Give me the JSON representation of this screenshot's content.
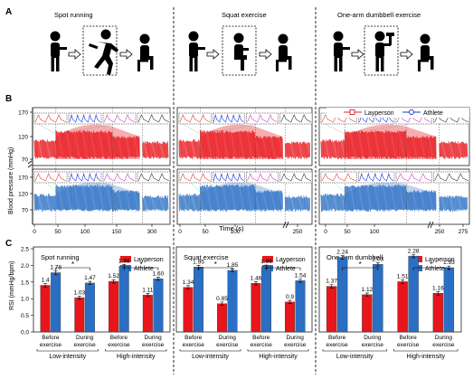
{
  "panel_letters": [
    "A",
    "B",
    "C"
  ],
  "panel_a": {
    "scenarios": [
      "Spot running",
      "Squat exercise",
      "One-arm dumbbell exercise"
    ]
  },
  "panel_b": {
    "ylabel": "Blood pressure (mmHg)",
    "xlabel": "Time (s)",
    "legend": [
      "Layperson",
      "Athlete"
    ],
    "yticks": [
      "170",
      "120",
      "70"
    ],
    "xticks": [
      [
        "0",
        "50",
        "100",
        "150",
        "300"
      ],
      [
        "0",
        "50",
        "100",
        "250"
      ],
      [
        "0",
        "50",
        "100",
        "250",
        "275"
      ]
    ]
  },
  "colors": {
    "layperson": "#e8151b",
    "athlete": "#2b6fc4",
    "layperson_mark": "#e02020",
    "athlete_mark": "#1a35d0"
  },
  "chart_data": [
    {
      "type": "bar",
      "title": "Spot running",
      "ylabel": "RSI (mmHg/bpm)",
      "ylim": [
        0,
        2.5
      ],
      "yticks": [
        "0.0",
        "0.5",
        "1.0",
        "1.5",
        "2.0",
        "2.5"
      ],
      "categories": [
        "Before exercise",
        "During exercise",
        "Before exercise",
        "During exercise"
      ],
      "groups": [
        "Low-intensity",
        "High-intensity"
      ],
      "legend_position": "top-right",
      "series": [
        {
          "name": "Layperson",
          "values": [
            1.4,
            1.03,
            1.52,
            1.11
          ]
        },
        {
          "name": "Athlete",
          "values": [
            1.78,
            1.47,
            1.98,
            1.6
          ]
        }
      ],
      "labels": {
        "Layperson": [
          "1.4",
          "1.03",
          "1.52",
          "1.11"
        ],
        "Athlete": [
          "1.78",
          "1.47",
          "1.98",
          "1.60"
        ]
      },
      "significance": "*"
    },
    {
      "type": "bar",
      "title": "Squat exercise",
      "ylim": [
        0,
        2.5
      ],
      "categories": [
        "Before exercise",
        "During exercise",
        "Before exercise",
        "During exercise"
      ],
      "groups": [
        "Low-intensity",
        "High-intensity"
      ],
      "legend_position": "top-right",
      "series": [
        {
          "name": "Layperson",
          "values": [
            1.34,
            0.85,
            1.46,
            0.9
          ]
        },
        {
          "name": "Athlete",
          "values": [
            1.95,
            1.85,
            1.96,
            1.54
          ]
        }
      ],
      "labels": {
        "Layperson": [
          "1.34",
          "0.85",
          "1.46",
          "0.9"
        ],
        "Athlete": [
          "1.95",
          "1.85",
          "1.96",
          "1.54"
        ]
      },
      "significance": "*"
    },
    {
      "type": "bar",
      "title": "One-arm dumbbell",
      "ylim": [
        0,
        2.5
      ],
      "categories": [
        "Before exercise",
        "During exercise",
        "Before exercise",
        "During exercise"
      ],
      "groups": [
        "Low-intensity",
        "High-intensity"
      ],
      "legend_position": "top-right",
      "series": [
        {
          "name": "Layperson",
          "values": [
            1.37,
            1.12,
            1.51,
            1.16
          ]
        },
        {
          "name": "Athlete",
          "values": [
            2.24,
            2.03,
            2.28,
            1.93
          ]
        }
      ],
      "labels": {
        "Layperson": [
          "1.37",
          "1.12",
          "1.51",
          "1.16"
        ],
        "Athlete": [
          "2.24",
          "2.03",
          "2.28",
          "1.93"
        ]
      },
      "significance": "*"
    }
  ]
}
